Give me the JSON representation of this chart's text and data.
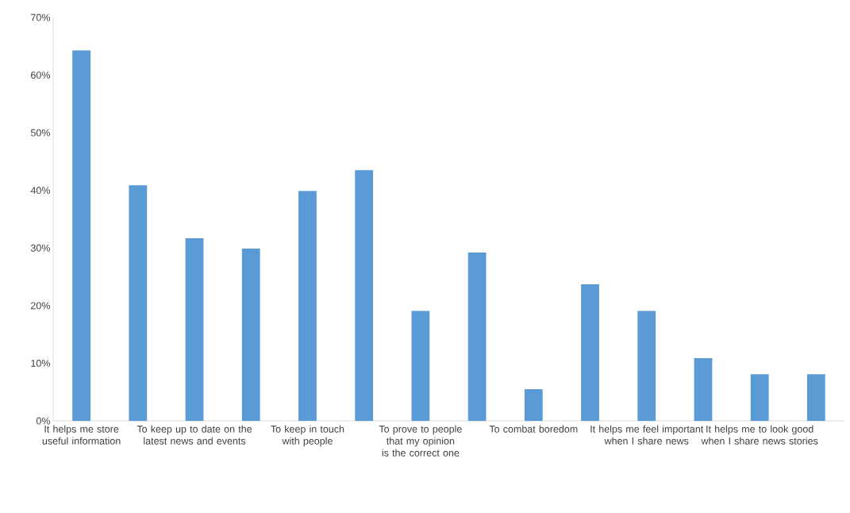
{
  "chart_data": {
    "type": "bar",
    "categories": [
      "It helps me store useful information",
      null,
      "To keep up to date on the latest news and events",
      null,
      "To keep in touch with people",
      null,
      "To prove to people that my opinion is the correct one",
      null,
      "To combat boredom",
      null,
      "It helps me feel important when I share news",
      null,
      "It helps me to look good when I share news stories",
      null
    ],
    "values": [
      64.3,
      40.9,
      31.7,
      29.9,
      39.9,
      43.5,
      19.1,
      29.2,
      5.5,
      23.7,
      19.1,
      10.9,
      8.1,
      8.1
    ],
    "color": "#5b9bd5",
    "ylim": [
      0,
      70
    ],
    "yticks": [
      {
        "value": 0,
        "label": "0%"
      },
      {
        "value": 10,
        "label": "10%"
      },
      {
        "value": 20,
        "label": "20%"
      },
      {
        "value": 30,
        "label": "30%"
      },
      {
        "value": 40,
        "label": "40%"
      },
      {
        "value": 50,
        "label": "50%"
      },
      {
        "value": 60,
        "label": "60%"
      },
      {
        "value": 70,
        "label": "70%"
      }
    ],
    "grid": false
  }
}
